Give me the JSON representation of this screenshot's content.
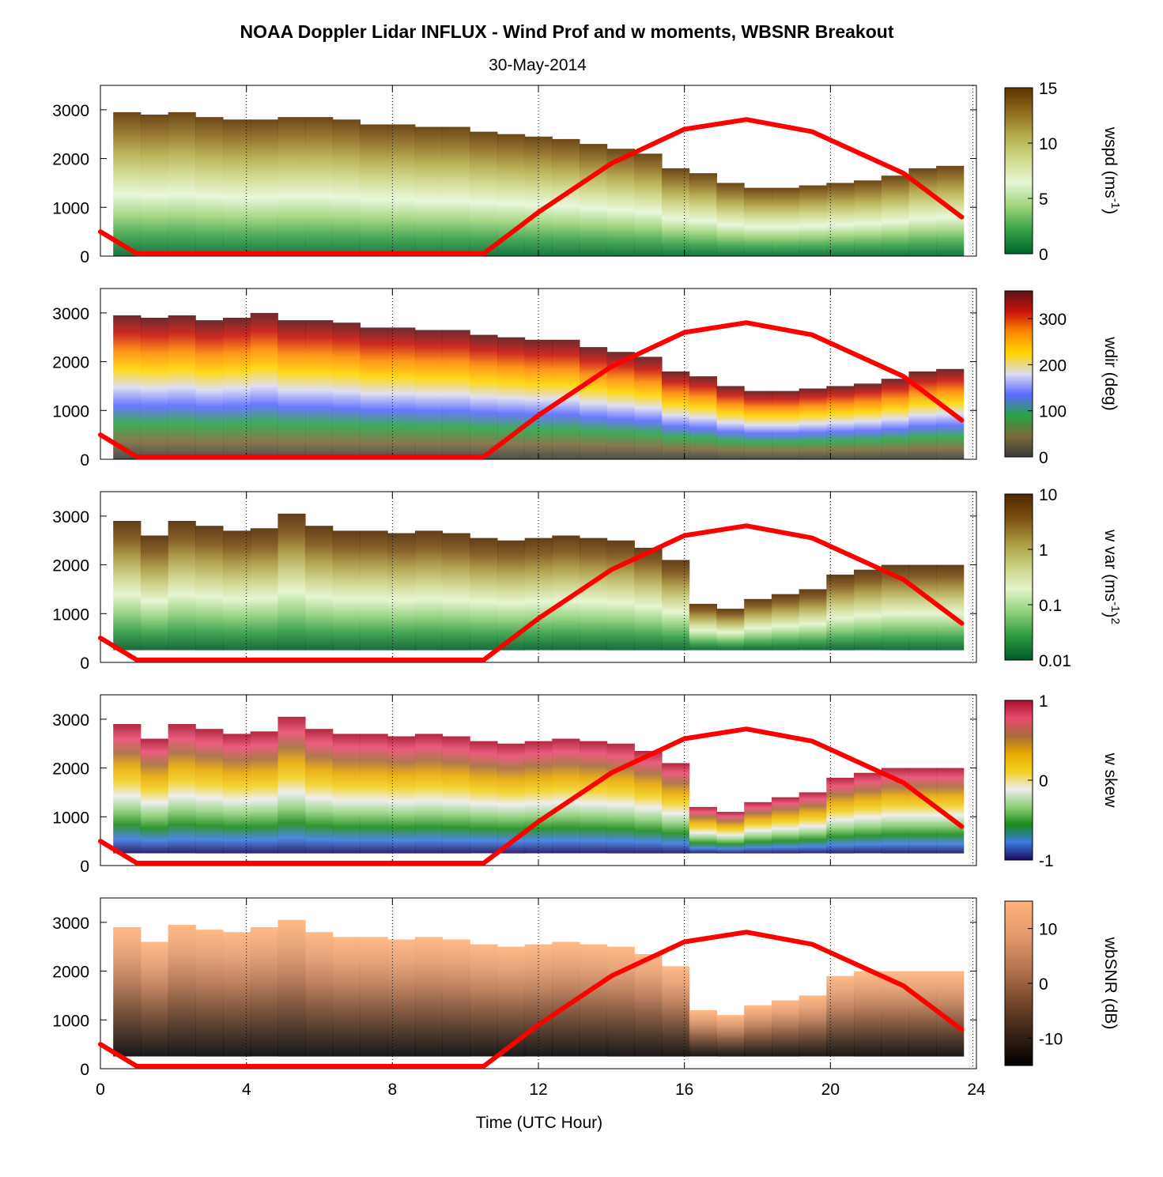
{
  "title": "NOAA Doppler Lidar INFLUX - Wind Prof and w moments, WBSNR Breakout",
  "subtitle": "30-May-2014",
  "chart_data": {
    "type": "heatmap",
    "xlabel": "Time (UTC Hour)",
    "xlim": [
      0,
      24
    ],
    "xticks": [
      0,
      4,
      8,
      12,
      16,
      20,
      24
    ],
    "xtick_labels": [
      "0",
      "4",
      "8",
      "12",
      "16",
      "20",
      "24"
    ],
    "ylim": [
      0,
      3500
    ],
    "yticks": [
      0,
      1000,
      2000,
      3000
    ],
    "ytick_labels": [
      "0",
      "1000",
      "2000",
      "3000"
    ],
    "vertical_dotted_grid_hours": [
      4,
      8,
      12,
      16,
      20
    ],
    "overlay_curve": {
      "color": "#ff0000",
      "points": [
        [
          0,
          500
        ],
        [
          1,
          50
        ],
        [
          10.5,
          50
        ],
        [
          12,
          900
        ],
        [
          14,
          1900
        ],
        [
          16,
          2600
        ],
        [
          17.7,
          2800
        ],
        [
          19.5,
          2550
        ],
        [
          22,
          1700
        ],
        [
          23.6,
          800
        ]
      ]
    },
    "panels": [
      {
        "id": "wspd",
        "colorbar_label_parts": [
          "wspd (ms",
          "-1",
          ")"
        ],
        "cbar_ticks": [
          0,
          5,
          10,
          15
        ],
        "cbar_tick_labels": [
          "0",
          "5",
          "10",
          "15"
        ],
        "cbar_range": [
          0,
          15
        ],
        "cbar_colors": [
          "#00662d",
          "#36a046",
          "#9ed47a",
          "#e6f6d6",
          "#cfd98a",
          "#b3ab48",
          "#8d6a1c",
          "#5c3300"
        ],
        "data_top_height": [
          2950,
          2900,
          2950,
          2850,
          2800,
          2800,
          2850,
          2850,
          2800,
          2700,
          2700,
          2650,
          2650,
          2550,
          2500,
          2450,
          2400,
          2300,
          2200,
          2100,
          1800,
          1700,
          1500,
          1400,
          1400,
          1450,
          1500,
          1550,
          1650,
          1800,
          1850
        ]
      },
      {
        "id": "wdir",
        "colorbar_label_parts": [
          "wdir (deg)"
        ],
        "cbar_ticks": [
          0,
          100,
          200,
          300
        ],
        "cbar_tick_labels": [
          "0",
          "100",
          "200",
          "300"
        ],
        "cbar_range": [
          0,
          360
        ],
        "cbar_colors": [
          "#3a3a3a",
          "#7a6a3a",
          "#2aa246",
          "#5a6aff",
          "#dcdcf0",
          "#ffd400",
          "#ff8a00",
          "#c8120a",
          "#5a1418"
        ],
        "data_top_height": [
          2950,
          2900,
          2950,
          2850,
          2900,
          3000,
          2850,
          2850,
          2800,
          2700,
          2700,
          2650,
          2650,
          2550,
          2500,
          2450,
          2450,
          2300,
          2200,
          2100,
          1800,
          1700,
          1500,
          1400,
          1400,
          1450,
          1500,
          1550,
          1650,
          1800,
          1850
        ]
      },
      {
        "id": "wvar",
        "colorbar_label_parts": [
          "w var (ms",
          "-1",
          ")",
          "2"
        ],
        "cbar_ticks": [
          0.01,
          0.1,
          1,
          10
        ],
        "cbar_tick_labels": [
          "0.01",
          "0.1",
          "1",
          "10"
        ],
        "cbar_range": [
          0.01,
          10
        ],
        "cbar_scale": "log",
        "cbar_colors": [
          "#005a28",
          "#2c9a40",
          "#8fd07a",
          "#e4f4cc",
          "#c9cf80",
          "#a8963c",
          "#7a4e10",
          "#4e2800"
        ],
        "data_top_height": [
          2900,
          2600,
          2900,
          2800,
          2700,
          2750,
          3050,
          2800,
          2700,
          2700,
          2650,
          2700,
          2650,
          2550,
          2500,
          2550,
          2600,
          2550,
          2500,
          2350,
          2100,
          1200,
          1100,
          1300,
          1400,
          1500,
          1800,
          1900,
          2000,
          2000,
          2000
        ]
      },
      {
        "id": "wskew",
        "colorbar_label_parts": [
          "w skew"
        ],
        "cbar_ticks": [
          -1,
          0,
          1
        ],
        "cbar_tick_labels": [
          "-1",
          "0",
          "1"
        ],
        "cbar_range": [
          -1,
          1
        ],
        "cbar_colors": [
          "#1a0a5a",
          "#3a7ae0",
          "#1a8a1a",
          "#8fd07a",
          "#ececec",
          "#f2d020",
          "#e8a800",
          "#a86a3a",
          "#e84a70",
          "#a8102a"
        ],
        "data_top_height": [
          2900,
          2600,
          2900,
          2800,
          2700,
          2750,
          3050,
          2800,
          2700,
          2700,
          2650,
          2700,
          2650,
          2550,
          2500,
          2550,
          2600,
          2550,
          2500,
          2350,
          2100,
          1200,
          1100,
          1300,
          1400,
          1500,
          1800,
          1900,
          2000,
          2000,
          2000
        ]
      },
      {
        "id": "wbsnr",
        "colorbar_label_parts": [
          "wbSNR (dB)"
        ],
        "cbar_ticks": [
          -10,
          0,
          10
        ],
        "cbar_tick_labels": [
          "-10",
          "0",
          "10"
        ],
        "cbar_range": [
          -15,
          15
        ],
        "cbar_colors": [
          "#000000",
          "#3a2416",
          "#7a4a2e",
          "#b87650",
          "#e49a6c",
          "#ffb27a"
        ],
        "data_top_height": [
          2900,
          2600,
          2950,
          2850,
          2800,
          2900,
          3050,
          2800,
          2700,
          2700,
          2650,
          2700,
          2650,
          2550,
          2500,
          2550,
          2600,
          2550,
          2500,
          2350,
          2100,
          1200,
          1100,
          1300,
          1400,
          1500,
          1900,
          2000,
          2000,
          2000,
          2000
        ]
      }
    ]
  }
}
